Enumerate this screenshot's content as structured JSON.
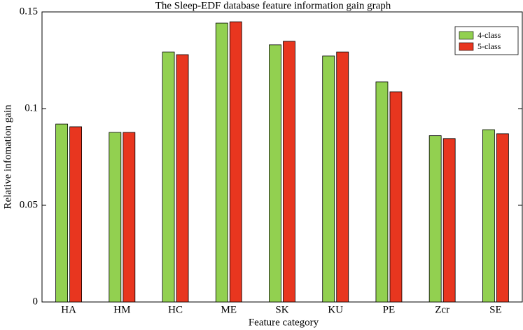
{
  "chart_data": {
    "type": "bar",
    "title": "The Sleep-EDF database feature information gain graph",
    "x_label": "Feature category",
    "y_label": "Relative infomation gain",
    "categories": [
      "HA",
      "HM",
      "HC",
      "ME",
      "SK",
      "KU",
      "PE",
      "Zcr",
      "SE"
    ],
    "series": [
      {
        "name": "4-class",
        "color": "#92d050",
        "values": [
          0.092,
          0.0877,
          0.1293,
          0.1442,
          0.133,
          0.1272,
          0.1138,
          0.086,
          0.0891
        ]
      },
      {
        "name": "5-class",
        "color": "#e8361f",
        "values": [
          0.0906,
          0.0877,
          0.1279,
          0.1449,
          0.1348,
          0.1293,
          0.1087,
          0.0845,
          0.087
        ]
      }
    ],
    "ylim": [
      0,
      0.15
    ],
    "yticks": [
      0,
      0.05,
      0.1,
      0.15
    ],
    "legend": "upper right"
  }
}
